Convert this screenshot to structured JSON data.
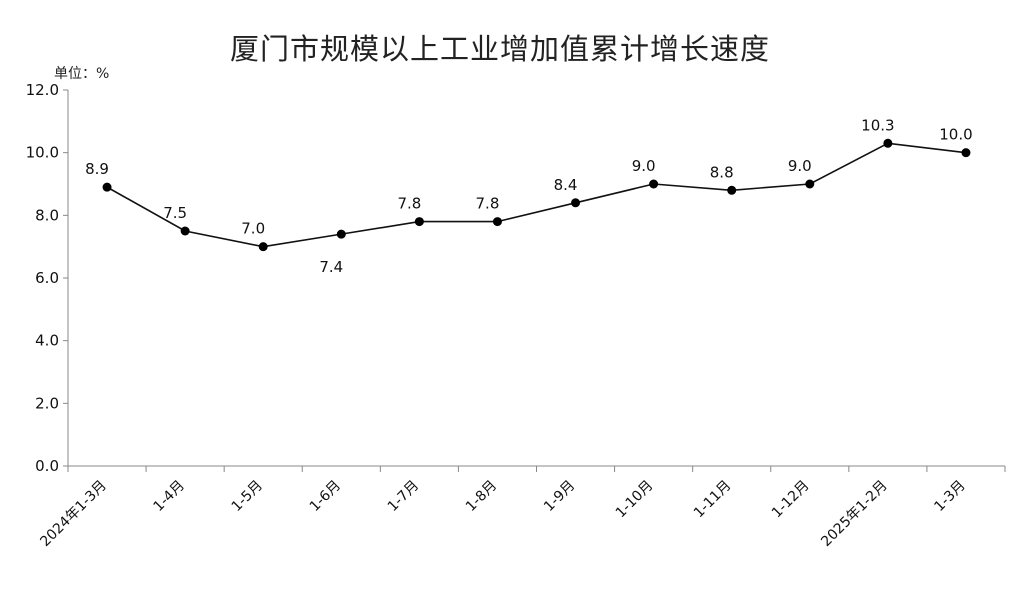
{
  "chart_data": {
    "type": "line",
    "title": "厦门市规模以上工业增加值累计增长速度",
    "unit_label": "单位：%",
    "xlabel": "",
    "ylabel": "",
    "categories": [
      "2024年1-3月",
      "1-4月",
      "1-5月",
      "1-6月",
      "1-7月",
      "1-8月",
      "1-9月",
      "1-10月",
      "1-11月",
      "1-12月",
      "2025年1-2月",
      "1-3月"
    ],
    "values": [
      8.9,
      7.5,
      7.0,
      7.4,
      7.8,
      7.8,
      8.4,
      9.0,
      8.8,
      9.0,
      10.3,
      10.0
    ],
    "data_labels": [
      "8.9",
      "7.5",
      "7.0",
      "7.4",
      "7.8",
      "7.8",
      "8.4",
      "9.0",
      "8.8",
      "9.0",
      "10.3",
      "10.0"
    ],
    "label_position": [
      "above",
      "above",
      "above",
      "below",
      "above",
      "above",
      "above",
      "above",
      "above",
      "above",
      "above",
      "above"
    ],
    "ylim": [
      0,
      12
    ],
    "yticks": [
      "0.0",
      "2.0",
      "4.0",
      "6.0",
      "8.0",
      "10.0",
      "12.0"
    ],
    "grid": false,
    "legend": "none",
    "line_color": "#111111",
    "marker_color": "#000000"
  }
}
